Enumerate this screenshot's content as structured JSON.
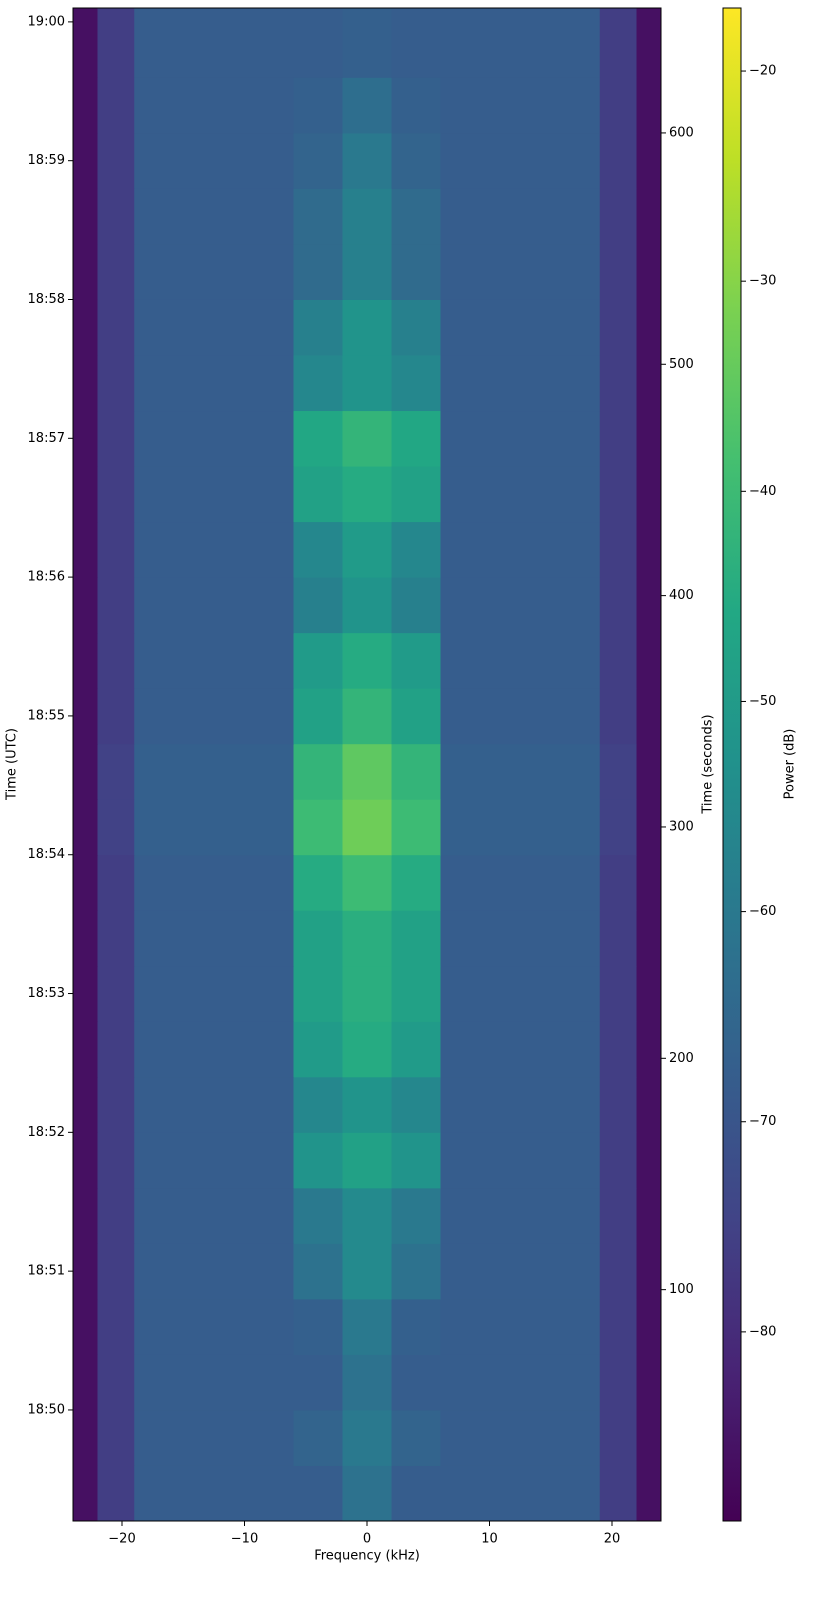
{
  "chart_data": {
    "type": "heatmap",
    "xlabel": "Frequency (kHz)",
    "ylabel": "Time (UTC)",
    "y2label": "Time (seconds)",
    "colorbar_label": "Power (dB)",
    "colormap": "viridis",
    "xlim": [
      -24,
      24
    ],
    "xticks": [
      {
        "value": -20,
        "label": "−20"
      },
      {
        "value": -10,
        "label": "−10"
      },
      0,
      10,
      20
    ],
    "ylim": [
      0,
      654
    ],
    "yticks": [
      {
        "value": 48,
        "label": "18:50"
      },
      {
        "value": 108,
        "label": "18:51"
      },
      {
        "value": 168,
        "label": "18:52"
      },
      {
        "value": 228,
        "label": "18:53"
      },
      {
        "value": 288,
        "label": "18:54"
      },
      {
        "value": 348,
        "label": "18:55"
      },
      {
        "value": 408,
        "label": "18:56"
      },
      {
        "value": 468,
        "label": "18:57"
      },
      {
        "value": 528,
        "label": "18:58"
      },
      {
        "value": 588,
        "label": "18:59"
      },
      {
        "value": 648,
        "label": "19:00"
      }
    ],
    "y2lim": [
      0,
      654
    ],
    "y2ticks": [
      100,
      200,
      300,
      400,
      500,
      600
    ],
    "clim": [
      -89,
      -17
    ],
    "cticks": [
      {
        "value": -20,
        "label": "−20"
      },
      {
        "value": -30,
        "label": "−30"
      },
      {
        "value": -40,
        "label": "−40"
      },
      {
        "value": -50,
        "label": "−50"
      },
      {
        "value": -60,
        "label": "−60"
      },
      {
        "value": -70,
        "label": "−70"
      },
      {
        "value": -80,
        "label": "−80"
      }
    ],
    "x_bins": [
      -24,
      -22,
      -19,
      -6,
      -2,
      2,
      6,
      19,
      22,
      24
    ],
    "y_bins": [
      0,
      24,
      48,
      72,
      96,
      120,
      144,
      168,
      192,
      216,
      240,
      264,
      288,
      312,
      336,
      360,
      384,
      408,
      432,
      456,
      480,
      504,
      528,
      552,
      576,
      600,
      624,
      654
    ],
    "z": [
      [
        -86,
        -76,
        -68,
        -68,
        -62,
        -68,
        -68,
        -76,
        -86
      ],
      [
        -86,
        -76,
        -68,
        -66,
        -60,
        -66,
        -68,
        -76,
        -86
      ],
      [
        -86,
        -76,
        -68,
        -68,
        -62,
        -68,
        -68,
        -76,
        -86
      ],
      [
        -86,
        -76,
        -68,
        -67,
        -60,
        -67,
        -68,
        -76,
        -86
      ],
      [
        -86,
        -76,
        -68,
        -62,
        -55,
        -62,
        -68,
        -76,
        -86
      ],
      [
        -86,
        -76,
        -68,
        -60,
        -55,
        -60,
        -68,
        -76,
        -86
      ],
      [
        -86,
        -76,
        -68,
        -52,
        -48,
        -52,
        -68,
        -76,
        -86
      ],
      [
        -86,
        -76,
        -68,
        -56,
        -52,
        -56,
        -68,
        -76,
        -86
      ],
      [
        -86,
        -76,
        -68,
        -50,
        -45,
        -50,
        -68,
        -76,
        -86
      ],
      [
        -86,
        -76,
        -68,
        -48,
        -44,
        -48,
        -68,
        -76,
        -86
      ],
      [
        -86,
        -76,
        -68,
        -48,
        -44,
        -48,
        -68,
        -76,
        -86
      ],
      [
        -86,
        -76,
        -68,
        -45,
        -40,
        -45,
        -68,
        -76,
        -86
      ],
      [
        -86,
        -75,
        -67,
        -40,
        -33,
        -40,
        -67,
        -75,
        -86
      ],
      [
        -86,
        -75,
        -67,
        -42,
        -35,
        -42,
        -67,
        -75,
        -86
      ],
      [
        -86,
        -76,
        -68,
        -48,
        -42,
        -48,
        -68,
        -76,
        -86
      ],
      [
        -86,
        -76,
        -68,
        -50,
        -45,
        -50,
        -68,
        -76,
        -86
      ],
      [
        -86,
        -76,
        -68,
        -58,
        -52,
        -58,
        -68,
        -76,
        -86
      ],
      [
        -86,
        -76,
        -68,
        -56,
        -50,
        -56,
        -68,
        -76,
        -86
      ],
      [
        -86,
        -76,
        -68,
        -48,
        -45,
        -48,
        -68,
        -76,
        -86
      ],
      [
        -86,
        -76,
        -68,
        -46,
        -42,
        -46,
        -68,
        -76,
        -86
      ],
      [
        -86,
        -76,
        -68,
        -56,
        -52,
        -56,
        -68,
        -76,
        -86
      ],
      [
        -86,
        -76,
        -68,
        -58,
        -52,
        -58,
        -68,
        -76,
        -86
      ],
      [
        -86,
        -76,
        -68,
        -64,
        -58,
        -64,
        -68,
        -76,
        -86
      ],
      [
        -86,
        -76,
        -68,
        -64,
        -58,
        -64,
        -68,
        -76,
        -86
      ],
      [
        -86,
        -76,
        -68,
        -66,
        -60,
        -66,
        -68,
        -76,
        -86
      ],
      [
        -86,
        -76,
        -68,
        -67,
        -63,
        -67,
        -68,
        -76,
        -86
      ],
      [
        -86,
        -76,
        -68,
        -68,
        -67,
        -68,
        -68,
        -76,
        -86
      ]
    ]
  }
}
